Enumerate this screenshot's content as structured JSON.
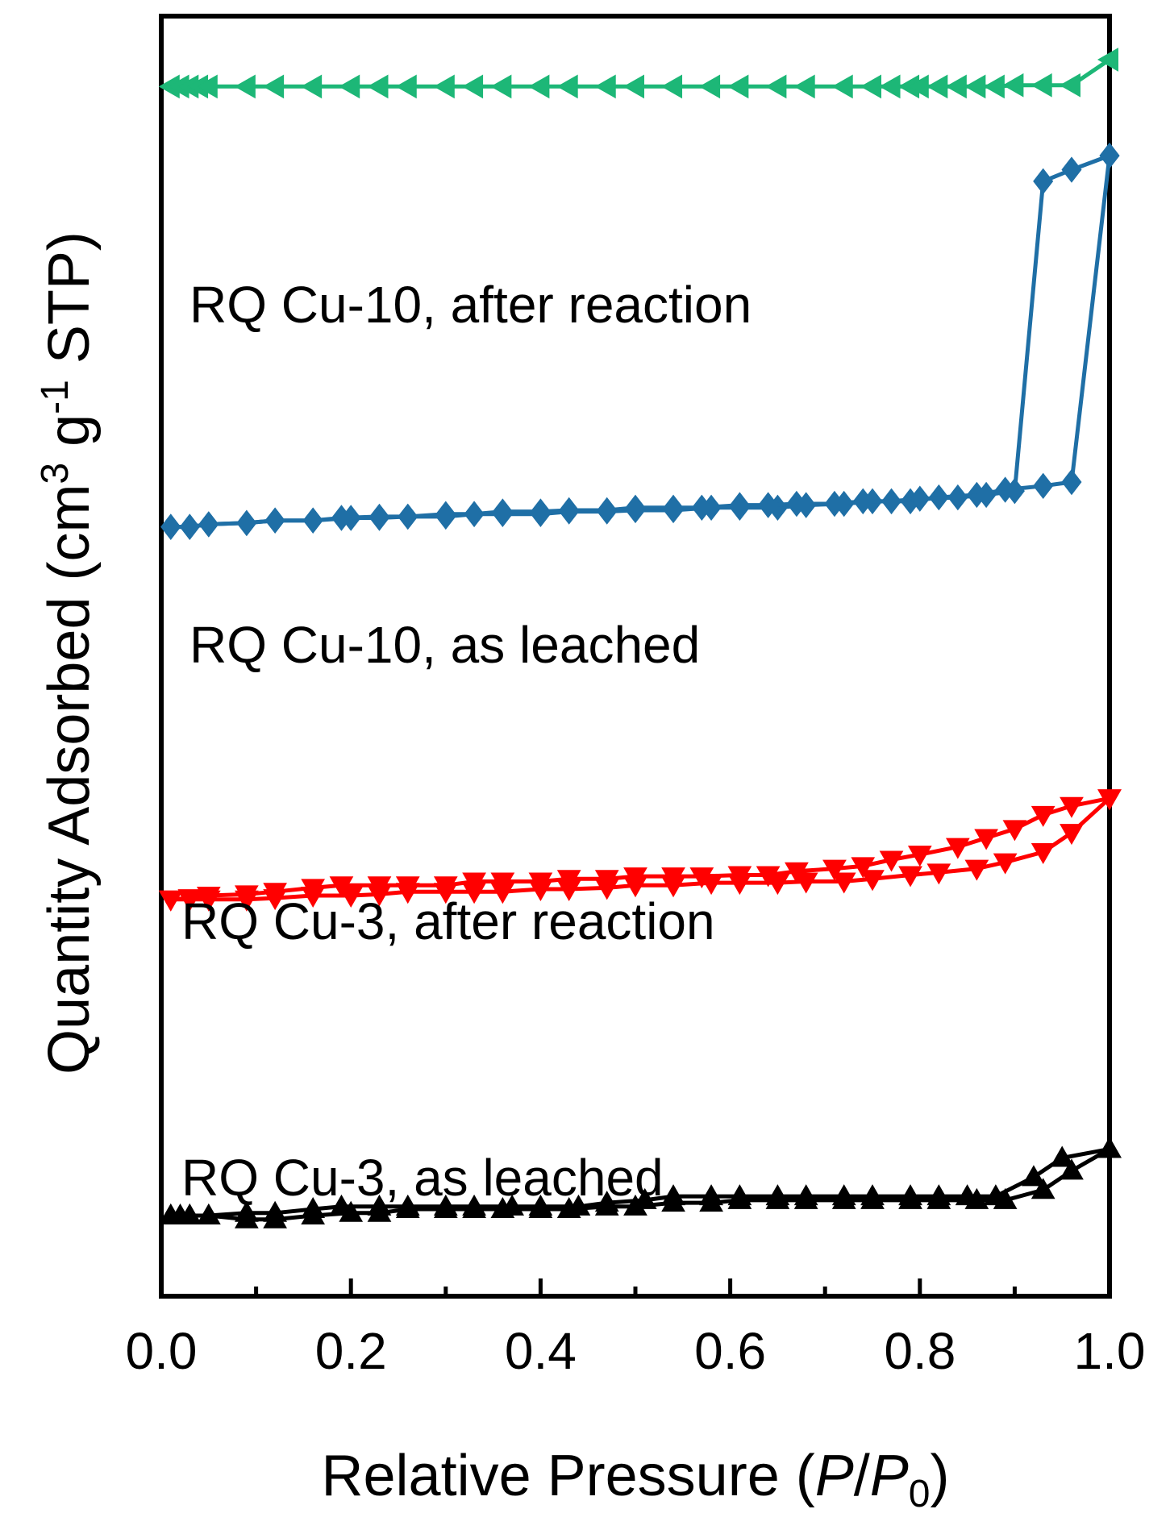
{
  "chart_data": {
    "type": "line",
    "title": "",
    "xlabel": "Relative Pressure (P/P0)",
    "xlabel_parts": {
      "pre": "Relative Pressure (",
      "p": "P",
      "slash": "/",
      "p0": "P",
      "sub": "0",
      "post": ")"
    },
    "ylabel": "Quantity Adsorbed (cm3 g-1 STP)",
    "ylabel_parts": {
      "a": "Quantity Adsorbed (cm",
      "sup1": "3",
      "b": " g",
      "sup2": "-1",
      "c": " STP)"
    },
    "xlim": [
      0.0,
      1.0
    ],
    "ylim": [
      0,
      100
    ],
    "y_ticks_labeled": false,
    "x_ticks": [
      "0.0",
      "0.2",
      "0.4",
      "0.6",
      "0.8",
      "1.0"
    ],
    "series": [
      {
        "name": "RQ Cu-3, as leached",
        "color": "#000000",
        "marker": "triangle-up",
        "adsorption": {
          "x": [
            0.01,
            0.02,
            0.03,
            0.05,
            0.09,
            0.12,
            0.16,
            0.2,
            0.23,
            0.26,
            0.3,
            0.33,
            0.36,
            0.4,
            0.43,
            0.47,
            0.5,
            0.54,
            0.58,
            0.61,
            0.65,
            0.68,
            0.72,
            0.75,
            0.79,
            0.82,
            0.86,
            0.89,
            0.93,
            0.96,
            1.0
          ],
          "y": [
            6.3,
            6.3,
            6.3,
            6.3,
            6.0,
            6.0,
            6.3,
            6.5,
            6.5,
            6.8,
            6.8,
            6.8,
            6.8,
            6.8,
            6.8,
            7.0,
            7.0,
            7.3,
            7.3,
            7.5,
            7.5,
            7.5,
            7.5,
            7.5,
            7.5,
            7.5,
            7.5,
            7.5,
            8.3,
            9.8,
            11.5
          ]
        },
        "desorption": {
          "x": [
            1.0,
            0.95,
            0.92,
            0.88,
            0.85,
            0.82,
            0.79,
            0.75,
            0.72,
            0.68,
            0.65,
            0.61,
            0.58,
            0.54,
            0.51,
            0.47,
            0.44,
            0.4,
            0.37,
            0.33,
            0.3,
            0.26,
            0.23,
            0.19,
            0.16,
            0.12,
            0.09,
            0.05,
            0.03,
            0.01
          ],
          "y": [
            11.5,
            10.8,
            9.3,
            7.8,
            7.8,
            7.8,
            7.8,
            7.8,
            7.8,
            7.8,
            7.8,
            7.8,
            7.8,
            7.8,
            7.5,
            7.3,
            7.0,
            7.0,
            7.0,
            7.0,
            7.0,
            7.0,
            7.0,
            7.0,
            6.8,
            6.5,
            6.5,
            6.3,
            6.3,
            6.3
          ]
        }
      },
      {
        "name": "RQ Cu-3, after reaction",
        "color": "#ff0000",
        "marker": "triangle-down",
        "adsorption": {
          "x": [
            0.01,
            0.03,
            0.05,
            0.09,
            0.12,
            0.16,
            0.2,
            0.23,
            0.26,
            0.3,
            0.33,
            0.36,
            0.4,
            0.43,
            0.47,
            0.5,
            0.54,
            0.58,
            0.61,
            0.65,
            0.68,
            0.72,
            0.75,
            0.79,
            0.82,
            0.86,
            0.89,
            0.93,
            0.96,
            1.0
          ],
          "y": [
            31.0,
            31.0,
            31.0,
            31.0,
            31.1,
            31.3,
            31.3,
            31.4,
            31.6,
            31.6,
            31.6,
            31.6,
            31.8,
            31.8,
            31.9,
            32.1,
            32.1,
            32.3,
            32.3,
            32.3,
            32.4,
            32.4,
            32.6,
            32.9,
            33.1,
            33.4,
            33.9,
            34.7,
            36.2,
            38.9
          ]
        },
        "desorption": {
          "x": [
            1.0,
            0.96,
            0.93,
            0.9,
            0.87,
            0.84,
            0.8,
            0.77,
            0.74,
            0.71,
            0.67,
            0.64,
            0.61,
            0.57,
            0.54,
            0.5,
            0.47,
            0.43,
            0.4,
            0.36,
            0.33,
            0.3,
            0.26,
            0.23,
            0.19,
            0.16,
            0.12,
            0.09,
            0.05,
            0.03,
            0.01
          ],
          "y": [
            38.9,
            38.3,
            37.6,
            36.5,
            35.8,
            35.1,
            34.5,
            34.1,
            33.6,
            33.4,
            33.2,
            32.9,
            32.9,
            32.8,
            32.8,
            32.8,
            32.6,
            32.6,
            32.4,
            32.4,
            32.4,
            32.1,
            32.1,
            32.1,
            32.1,
            31.9,
            31.6,
            31.4,
            31.3,
            31.1,
            31.0
          ]
        }
      },
      {
        "name": "RQ Cu-10, as leached",
        "color": "#1f6fa6",
        "marker": "diamond",
        "adsorption": {
          "x": [
            0.01,
            0.03,
            0.05,
            0.09,
            0.12,
            0.16,
            0.2,
            0.23,
            0.26,
            0.3,
            0.33,
            0.36,
            0.4,
            0.43,
            0.47,
            0.5,
            0.54,
            0.58,
            0.61,
            0.65,
            0.68,
            0.72,
            0.75,
            0.79,
            0.82,
            0.86,
            0.89,
            0.93,
            0.96,
            1.0
          ],
          "y": [
            60.1,
            60.1,
            60.3,
            60.4,
            60.6,
            60.6,
            60.8,
            60.8,
            60.9,
            60.9,
            61.1,
            61.1,
            61.1,
            61.3,
            61.3,
            61.4,
            61.4,
            61.6,
            61.6,
            61.6,
            61.8,
            61.9,
            62.1,
            62.1,
            62.4,
            62.6,
            63.0,
            63.3,
            63.6,
            89.1
          ]
        },
        "desorption": {
          "x": [
            1.0,
            0.96,
            0.93,
            0.9,
            0.87,
            0.84,
            0.8,
            0.77,
            0.74,
            0.71,
            0.67,
            0.64,
            0.61,
            0.57,
            0.54,
            0.5,
            0.47,
            0.43,
            0.4,
            0.36,
            0.33,
            0.3,
            0.26,
            0.23,
            0.19,
            0.16,
            0.12,
            0.09,
            0.05,
            0.03,
            0.01
          ],
          "y": [
            89.1,
            88.0,
            87.1,
            62.9,
            62.6,
            62.4,
            62.3,
            62.1,
            62.1,
            61.9,
            61.9,
            61.8,
            61.8,
            61.6,
            61.6,
            61.6,
            61.4,
            61.4,
            61.3,
            61.3,
            61.1,
            61.1,
            60.9,
            60.9,
            60.8,
            60.6,
            60.6,
            60.4,
            60.3,
            60.1,
            60.1
          ]
        }
      },
      {
        "name": "RQ Cu-10, after reaction",
        "color": "#1db777",
        "marker": "triangle-left",
        "adsorption": {
          "x": [
            0.01,
            0.02,
            0.03,
            0.04,
            0.05,
            0.09,
            0.12,
            0.16,
            0.2,
            0.23,
            0.26,
            0.3,
            0.33,
            0.36,
            0.4,
            0.43,
            0.47,
            0.5,
            0.54,
            0.58,
            0.61,
            0.65,
            0.68,
            0.72,
            0.75,
            0.77,
            0.79,
            0.8,
            0.82,
            0.84,
            0.86,
            0.88,
            0.9,
            0.93,
            0.96,
            1.0
          ],
          "y": [
            94.5,
            94.5,
            94.5,
            94.5,
            94.5,
            94.5,
            94.5,
            94.5,
            94.5,
            94.5,
            94.5,
            94.5,
            94.5,
            94.5,
            94.5,
            94.5,
            94.5,
            94.5,
            94.5,
            94.5,
            94.5,
            94.5,
            94.5,
            94.5,
            94.5,
            94.5,
            94.5,
            94.5,
            94.5,
            94.5,
            94.5,
            94.5,
            94.6,
            94.6,
            94.6,
            96.6
          ]
        },
        "desorption": {
          "x": [],
          "y": []
        }
      }
    ],
    "annotations": [
      {
        "text": "RQ Cu-10, after reaction",
        "anchor_series": 3
      },
      {
        "text": "RQ Cu-10, as leached",
        "anchor_series": 2
      },
      {
        "text": "RQ Cu-3, after reaction",
        "anchor_series": 1
      },
      {
        "text": "RQ Cu-3, as leached",
        "anchor_series": 0
      }
    ]
  }
}
